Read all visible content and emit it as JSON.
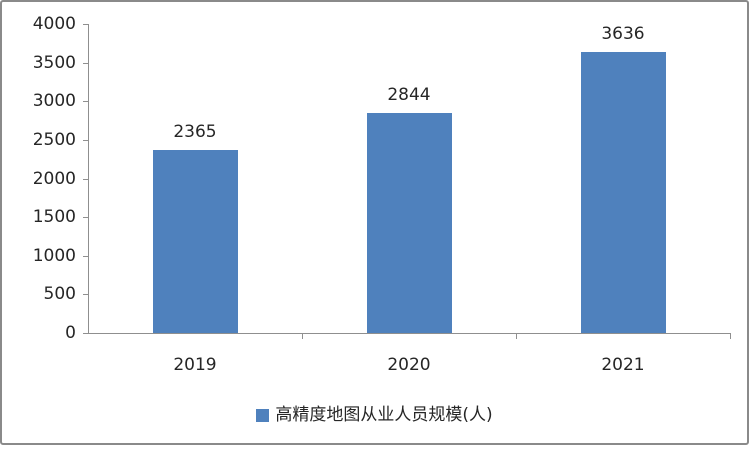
{
  "chart_data": {
    "type": "bar",
    "title": "",
    "xlabel": "",
    "ylabel": "",
    "categories": [
      "2019",
      "2020",
      "2021"
    ],
    "values": [
      2365,
      2844,
      3636
    ],
    "data_labels": [
      "2365",
      "2844",
      "3636"
    ],
    "yticks": [
      0,
      500,
      1000,
      1500,
      2000,
      2500,
      3000,
      3500,
      4000
    ],
    "ylim": [
      0,
      4000
    ],
    "grid": false,
    "legend": {
      "label": "高精度地图从业人员规模(人)",
      "position": "bottom",
      "marker": "square",
      "marker_color": "#4f81bd"
    },
    "colors": {
      "bar": "#4f81bd",
      "axis": "#8f8f8f",
      "text": "#262626",
      "frame_border": "#8a8a8a",
      "background": "#ffffff"
    }
  }
}
